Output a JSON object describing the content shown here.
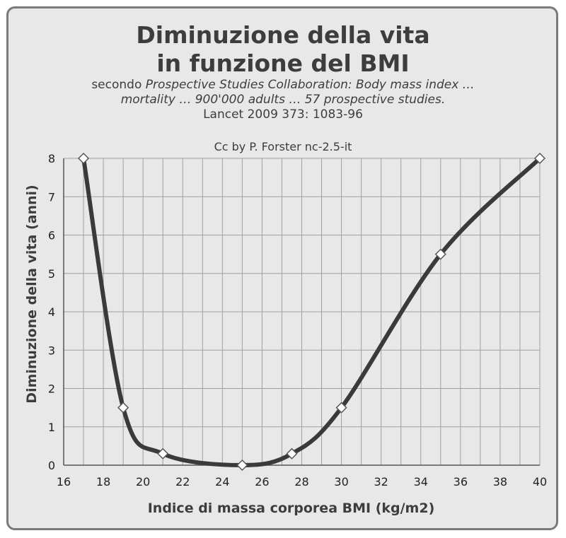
{
  "chart_data": {
    "type": "line",
    "title_line1": "Diminuzione della vita",
    "title_line2": "in funzione del BMI",
    "subtitle": {
      "line1_prefix": "secondo",
      "line1_italic": "Prospective Studies Collaboration: Body mass index …",
      "line2_italic": "mortality … 900'000 adults … 57 prospective studies.",
      "line3": "Lancet 2009 373: 1083-96"
    },
    "credit": "Cc by P. Forster nc-2.5-it",
    "xlabel": "Indice di massa corporea BMI (kg/m2)",
    "ylabel": "Diminuzione della vita (anni)",
    "xlim": [
      16,
      40
    ],
    "ylim": [
      0,
      8
    ],
    "x_ticks": [
      "16",
      "18",
      "20",
      "22",
      "24",
      "26",
      "28",
      "30",
      "32",
      "34",
      "36",
      "38",
      "40"
    ],
    "y_ticks": [
      "0",
      "1",
      "2",
      "3",
      "4",
      "5",
      "6",
      "7",
      "8"
    ],
    "grid": true,
    "series": [
      {
        "x": [
          17,
          19,
          21,
          25,
          27.5,
          30,
          35,
          40
        ],
        "y": [
          8,
          1.5,
          0.3,
          0,
          0.3,
          1.5,
          5.5,
          8
        ]
      }
    ],
    "colors": {
      "line": "#3a3a3a",
      "marker_fill": "#ffffff",
      "grid": "#a0a0a0",
      "plot_bg": "#e8e8e8"
    }
  }
}
